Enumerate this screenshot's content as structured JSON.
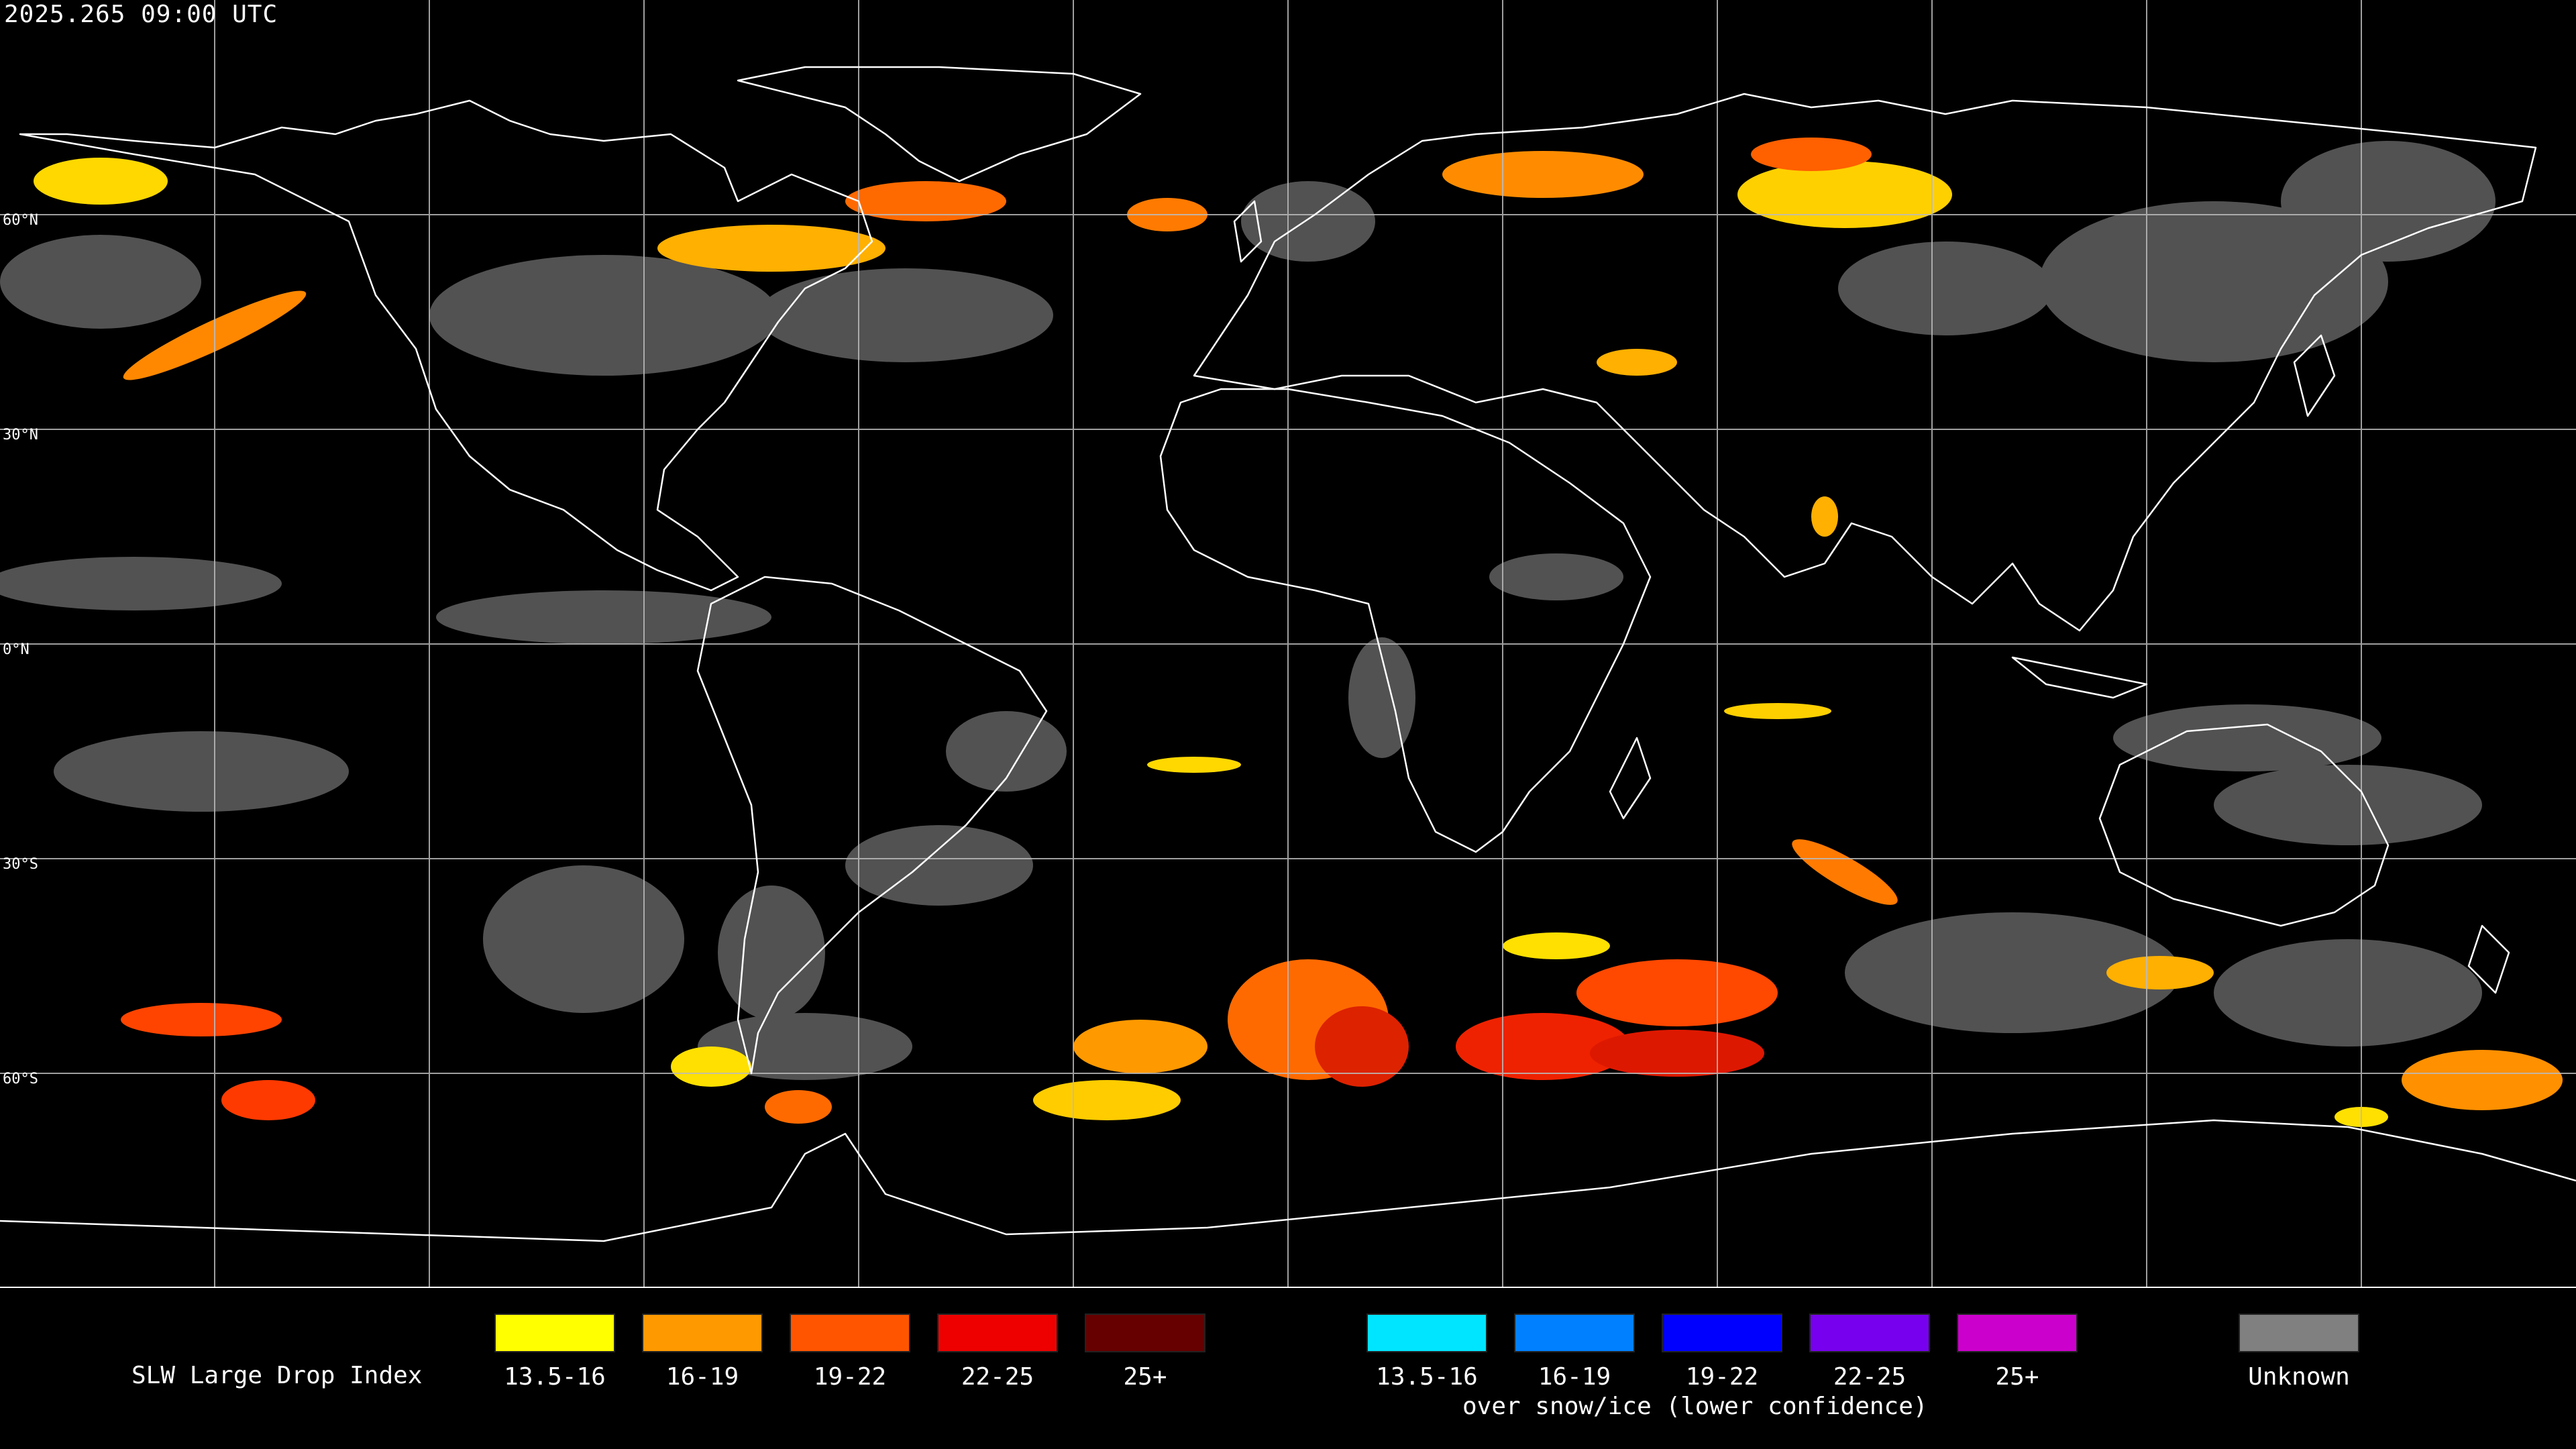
{
  "timestamp": "2025.265 09:00 UTC",
  "lat_labels": [
    "60°N",
    "30°N",
    "0°N",
    "30°S",
    "60°S"
  ],
  "legend": {
    "title": "SLW Large Drop Index",
    "standard": [
      {
        "label": "13.5-16",
        "color": "#ffff00"
      },
      {
        "label": "16-19",
        "color": "#ff9900"
      },
      {
        "label": "19-22",
        "color": "#ff5500"
      },
      {
        "label": "22-25",
        "color": "#ee0000"
      },
      {
        "label": "25+",
        "color": "#660000"
      }
    ],
    "snow_ice": [
      {
        "label": "13.5-16",
        "color": "#00e5ff"
      },
      {
        "label": "16-19",
        "color": "#0080ff"
      },
      {
        "label": "19-22",
        "color": "#0000ff"
      },
      {
        "label": "22-25",
        "color": "#7700ee"
      },
      {
        "label": "25+",
        "color": "#cc00cc"
      }
    ],
    "snow_ice_subtitle": "over snow/ice (lower confidence)",
    "unknown": {
      "label": "Unknown",
      "color": "#808080"
    }
  },
  "colors": {
    "background": "#000000",
    "coastline": "#ffffff",
    "grid": "#bbbbbb"
  }
}
